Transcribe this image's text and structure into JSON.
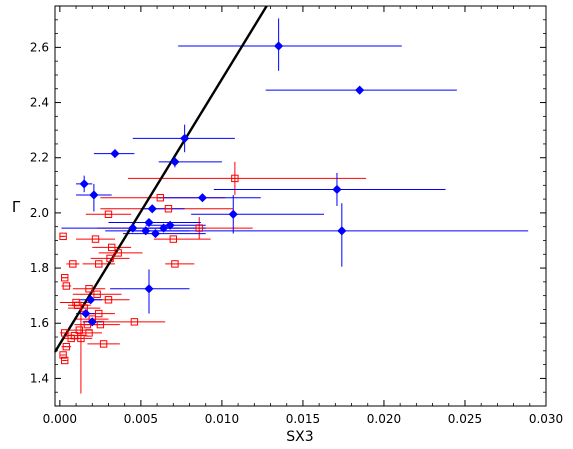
{
  "chart_data": {
    "type": "scatter",
    "title": "",
    "xlabel": "SX3",
    "ylabel": "Γ",
    "xlim": [
      -0.0003,
      0.03
    ],
    "ylim": [
      1.3,
      2.75
    ],
    "x_ticks": [
      0.0,
      0.005,
      0.01,
      0.015,
      0.02,
      0.025,
      0.03
    ],
    "x_tick_labels": [
      "0.000",
      "0.005",
      "0.010",
      "0.015",
      "0.020",
      "0.025",
      "0.030"
    ],
    "y_ticks": [
      1.4,
      1.6,
      1.8,
      2.0,
      2.2,
      2.4,
      2.6
    ],
    "y_tick_labels": [
      "1.4",
      "1.6",
      "1.8",
      "2.0",
      "2.2",
      "2.4",
      "2.6"
    ],
    "grid": false,
    "legend": "none",
    "fit_line": {
      "color": "#000000",
      "slope": 96,
      "intercept": 1.525
    },
    "series": [
      {
        "marker": "filled-diamond",
        "color": "#0000ff",
        "points": [
          {
            "x": 0.0135,
            "y": 2.605,
            "xerr": [
              0.0062,
              0.0076
            ],
            "yerr": [
              0.09,
              0.1
            ]
          },
          {
            "x": 0.0185,
            "y": 2.445,
            "xerr": [
              0.0058,
              0.006
            ],
            "yerr": [
              0.0,
              0.0
            ]
          },
          {
            "x": 0.0077,
            "y": 2.27,
            "xerr": [
              0.0032,
              0.0031
            ],
            "yerr": [
              0.05,
              0.05
            ]
          },
          {
            "x": 0.0034,
            "y": 2.215,
            "xerr": [
              0.0013,
              0.0012
            ],
            "yerr": [
              0.0,
              0.0
            ]
          },
          {
            "x": 0.0071,
            "y": 2.185,
            "xerr": [
              0.001,
              0.0029
            ],
            "yerr": [
              0.02,
              0.02
            ]
          },
          {
            "x": 0.0015,
            "y": 2.105,
            "xerr": [
              0.0005,
              0.0005
            ],
            "yerr": [
              0.03,
              0.03
            ]
          },
          {
            "x": 0.0021,
            "y": 2.065,
            "xerr": [
              0.0011,
              0.0011
            ],
            "yerr": [
              0.06,
              0.04
            ]
          },
          {
            "x": 0.0088,
            "y": 2.055,
            "xerr": [
              0.0027,
              0.0036
            ],
            "yerr": [
              0.0,
              0.0
            ]
          },
          {
            "x": 0.0057,
            "y": 2.015,
            "xerr": [
              0.0007,
              0.002
            ],
            "yerr": [
              0.0,
              0.0
            ]
          },
          {
            "x": 0.0107,
            "y": 1.995,
            "xerr": [
              0.0026,
              0.0056
            ],
            "yerr": [
              0.07,
              0.07
            ]
          },
          {
            "x": 0.0171,
            "y": 2.085,
            "xerr": [
              0.0076,
              0.0067
            ],
            "yerr": [
              0.06,
              0.06
            ]
          },
          {
            "x": 0.0174,
            "y": 1.935,
            "xerr": [
              0.0129,
              0.0115
            ],
            "yerr": [
              0.13,
              0.1
            ]
          },
          {
            "x": 0.0045,
            "y": 1.945,
            "xerr": [
              0.0044,
              0.0045
            ],
            "yerr": [
              0.0,
              0.0
            ]
          },
          {
            "x": 0.0055,
            "y": 1.965,
            "xerr": [
              0.0025,
              0.0032
            ],
            "yerr": [
              0.0,
              0.0
            ]
          },
          {
            "x": 0.0053,
            "y": 1.935,
            "xerr": [
              0.0025,
              0.0027
            ],
            "yerr": [
              0.0,
              0.0
            ]
          },
          {
            "x": 0.0059,
            "y": 1.925,
            "xerr": [
              0.002,
              0.0031
            ],
            "yerr": [
              0.0,
              0.0
            ]
          },
          {
            "x": 0.0064,
            "y": 1.945,
            "xerr": [
              0.001,
              0.001
            ],
            "yerr": [
              0.0,
              0.0
            ]
          },
          {
            "x": 0.0068,
            "y": 1.955,
            "xerr": [
              0.0015,
              0.0022
            ],
            "yerr": [
              0.0,
              0.0
            ]
          },
          {
            "x": 0.0055,
            "y": 1.725,
            "xerr": [
              0.0024,
              0.0025
            ],
            "yerr": [
              0.09,
              0.07
            ]
          },
          {
            "x": 0.0019,
            "y": 1.685,
            "xerr": [
              0.0007,
              0.0007
            ],
            "yerr": [
              0.0,
              0.0
            ]
          },
          {
            "x": 0.0016,
            "y": 1.635,
            "xerr": [
              0.0006,
              0.0006
            ],
            "yerr": [
              0.0,
              0.0
            ]
          },
          {
            "x": 0.002,
            "y": 1.605,
            "xerr": [
              0.0006,
              0.0006
            ],
            "yerr": [
              0.0,
              0.0
            ]
          }
        ]
      },
      {
        "marker": "open-square",
        "color": "#ff0000",
        "points": [
          {
            "x": 0.0108,
            "y": 2.125,
            "xerr": [
              0.0066,
              0.0081
            ],
            "yerr": [
              0.06,
              0.06
            ]
          },
          {
            "x": 0.0062,
            "y": 2.055,
            "xerr": [
              0.0037,
              0.004
            ],
            "yerr": [
              0.0,
              0.0
            ]
          },
          {
            "x": 0.0067,
            "y": 2.015,
            "xerr": [
              0.0042,
              0.004
            ],
            "yerr": [
              0.0,
              0.0
            ]
          },
          {
            "x": 0.003,
            "y": 1.995,
            "xerr": [
              0.0014,
              0.0014
            ],
            "yerr": [
              0.0,
              0.0
            ]
          },
          {
            "x": 0.0086,
            "y": 1.945,
            "xerr": [
              0.0063,
              0.0033
            ],
            "yerr": [
              0.04,
              0.04
            ]
          },
          {
            "x": 0.0002,
            "y": 1.915,
            "xerr": [
              0.0002,
              0.0001
            ],
            "yerr": [
              0.0,
              0.0
            ]
          },
          {
            "x": 0.0022,
            "y": 1.905,
            "xerr": [
              0.0012,
              0.0012
            ],
            "yerr": [
              0.0,
              0.0
            ]
          },
          {
            "x": 0.007,
            "y": 1.905,
            "xerr": [
              0.0012,
              0.0023
            ],
            "yerr": [
              0.0,
              0.0
            ]
          },
          {
            "x": 0.0032,
            "y": 1.875,
            "xerr": [
              0.0012,
              0.0012
            ],
            "yerr": [
              0.0,
              0.0
            ]
          },
          {
            "x": 0.0036,
            "y": 1.855,
            "xerr": [
              0.0012,
              0.0015
            ],
            "yerr": [
              0.0,
              0.0
            ]
          },
          {
            "x": 0.0031,
            "y": 1.835,
            "xerr": [
              0.0012,
              0.0012
            ],
            "yerr": [
              0.0,
              0.0
            ]
          },
          {
            "x": 0.0008,
            "y": 1.815,
            "xerr": [
              0.0004,
              0.0004
            ],
            "yerr": [
              0.0,
              0.0
            ]
          },
          {
            "x": 0.0024,
            "y": 1.815,
            "xerr": [
              0.001,
              0.001
            ],
            "yerr": [
              0.0,
              0.0
            ]
          },
          {
            "x": 0.0071,
            "y": 1.815,
            "xerr": [
              0.0006,
              0.0012
            ],
            "yerr": [
              0.0,
              0.0
            ]
          },
          {
            "x": 0.0003,
            "y": 1.765,
            "xerr": [
              0.0002,
              0.0002
            ],
            "yerr": [
              0.0,
              0.0
            ]
          },
          {
            "x": 0.0004,
            "y": 1.735,
            "xerr": [
              0.0003,
              0.0003
            ],
            "yerr": [
              0.0,
              0.0
            ]
          },
          {
            "x": 0.0018,
            "y": 1.725,
            "xerr": [
              0.001,
              0.001
            ],
            "yerr": [
              0.0,
              0.0
            ]
          },
          {
            "x": 0.0023,
            "y": 1.705,
            "xerr": [
              0.0015,
              0.0015
            ],
            "yerr": [
              0.0,
              0.0
            ]
          },
          {
            "x": 0.003,
            "y": 1.685,
            "xerr": [
              0.0013,
              0.0013
            ],
            "yerr": [
              0.0,
              0.0
            ]
          },
          {
            "x": 0.001,
            "y": 1.675,
            "xerr": [
              0.001,
              0.001
            ],
            "yerr": [
              0.0,
              0.0
            ]
          },
          {
            "x": 0.0015,
            "y": 1.655,
            "xerr": [
              0.001,
              0.001
            ],
            "yerr": [
              0.0,
              0.0
            ]
          },
          {
            "x": 0.0024,
            "y": 1.635,
            "xerr": [
              0.001,
              0.001
            ],
            "yerr": [
              0.0,
              0.0
            ]
          },
          {
            "x": 0.002,
            "y": 1.615,
            "xerr": [
              0.001,
              0.001
            ],
            "yerr": [
              0.0,
              0.0
            ]
          },
          {
            "x": 0.0046,
            "y": 1.605,
            "xerr": [
              0.0024,
              0.0019
            ],
            "yerr": [
              0.0,
              0.0
            ]
          },
          {
            "x": 0.0025,
            "y": 1.595,
            "xerr": [
              0.0012,
              0.0012
            ],
            "yerr": [
              0.0,
              0.0
            ]
          },
          {
            "x": 0.0012,
            "y": 1.575,
            "xerr": [
              0.0008,
              0.0008
            ],
            "yerr": [
              0.0,
              0.0
            ]
          },
          {
            "x": 0.0018,
            "y": 1.565,
            "xerr": [
              0.0008,
              0.0008
            ],
            "yerr": [
              0.0,
              0.0
            ]
          },
          {
            "x": 0.0003,
            "y": 1.565,
            "xerr": [
              0.0003,
              0.0003
            ],
            "yerr": [
              0.0,
              0.0
            ]
          },
          {
            "x": 0.0009,
            "y": 1.555,
            "xerr": [
              0.0006,
              0.0008
            ],
            "yerr": [
              0.0,
              0.0
            ]
          },
          {
            "x": 0.0013,
            "y": 1.545,
            "xerr": [
              0.0007,
              0.0007
            ],
            "yerr": [
              0.2,
              0.1
            ]
          },
          {
            "x": 0.0027,
            "y": 1.525,
            "xerr": [
              0.001,
              0.001
            ],
            "yerr": [
              0.0,
              0.0
            ]
          },
          {
            "x": 0.0004,
            "y": 1.515,
            "xerr": [
              0.0003,
              0.0003
            ],
            "yerr": [
              0.0,
              0.0
            ]
          },
          {
            "x": 0.0002,
            "y": 1.485,
            "xerr": [
              0.0001,
              0.0001
            ],
            "yerr": [
              0.0,
              0.0
            ]
          },
          {
            "x": 0.0003,
            "y": 1.465,
            "xerr": [
              0.0001,
              0.0001
            ],
            "yerr": [
              0.0,
              0.0
            ]
          },
          {
            "x": 0.0011,
            "y": 1.665,
            "xerr": [
              0.0006,
              0.0008
            ],
            "yerr": [
              0.0,
              0.0
            ]
          },
          {
            "x": 0.0017,
            "y": 1.595,
            "xerr": [
              0.0008,
              0.0008
            ],
            "yerr": [
              0.0,
              0.0
            ]
          },
          {
            "x": 0.0007,
            "y": 1.545,
            "xerr": [
              0.0005,
              0.0005
            ],
            "yerr": [
              0.0,
              0.0
            ]
          }
        ]
      }
    ]
  }
}
